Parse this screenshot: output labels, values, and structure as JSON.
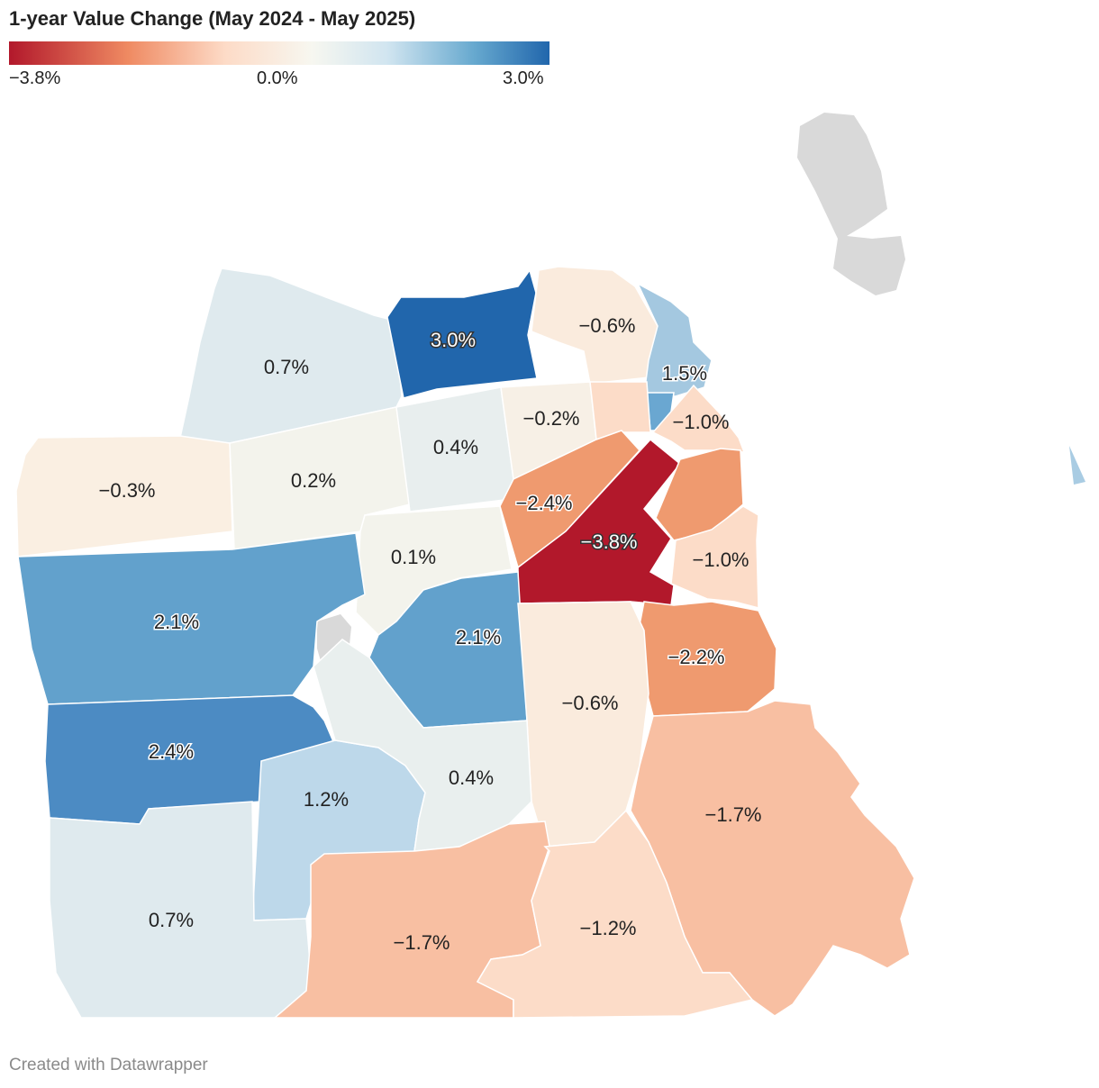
{
  "title": "1-year Value Change (May 2024 - May 2025)",
  "legend": {
    "min_label": "−3.8%",
    "mid_label": "0.0%",
    "max_label": "3.0%",
    "min": -3.8,
    "max": 3.0
  },
  "colors": {
    "deep_red": "#b2182b",
    "orange": "#ef9a6f",
    "salmon": "#f8bfa2",
    "light_peach": "#fcdcc8",
    "cream": "#faebdd",
    "off_white": "#f3f3ec",
    "pale_blue": "#dfeaee",
    "light_blue": "#bdd8ea",
    "mid_blue": "#62a1cc",
    "blue": "#4c8bc3",
    "dark_blue": "#2166ac",
    "no_data": "#d9d9d9"
  },
  "regions": [
    {
      "id": "presidio",
      "value": 0.7,
      "label": "0.7%"
    },
    {
      "id": "marina",
      "value": 3.0,
      "label": "3.0%"
    },
    {
      "id": "north-beach",
      "value": -0.6,
      "label": "−0.6%"
    },
    {
      "id": "financial-district",
      "value": 1.5,
      "label": "1.5%"
    },
    {
      "id": "richmond",
      "value": -0.3,
      "label": "−0.3%"
    },
    {
      "id": "inner-richmond",
      "value": 0.2,
      "label": "0.2%"
    },
    {
      "id": "pacific-heights",
      "value": 0.4,
      "label": "0.4%"
    },
    {
      "id": "nob-hill",
      "value": -0.2,
      "label": "−0.2%"
    },
    {
      "id": "south-beach",
      "value": -1.0,
      "label": "−1.0%"
    },
    {
      "id": "western-addition",
      "value": -2.4,
      "label": "−2.4%"
    },
    {
      "id": "soma",
      "value": -3.8,
      "label": "−3.8%"
    },
    {
      "id": "mission-bay",
      "value": -1.0,
      "label": "−1.0%"
    },
    {
      "id": "haight",
      "value": 0.1,
      "label": "0.1%"
    },
    {
      "id": "sunset",
      "value": 2.1,
      "label": "2.1%"
    },
    {
      "id": "castro",
      "value": 2.1,
      "label": "2.1%"
    },
    {
      "id": "potrero",
      "value": -2.2,
      "label": "−2.2%"
    },
    {
      "id": "mission",
      "value": -0.6,
      "label": "−0.6%"
    },
    {
      "id": "outer-sunset",
      "value": 2.4,
      "label": "2.4%"
    },
    {
      "id": "twin-peaks",
      "value": 1.2,
      "label": "1.2%"
    },
    {
      "id": "noe-valley",
      "value": 0.4,
      "label": "0.4%"
    },
    {
      "id": "bayview",
      "value": -1.7,
      "label": "−1.7%"
    },
    {
      "id": "parkside",
      "value": 0.7,
      "label": "0.7%"
    },
    {
      "id": "excelsior",
      "value": -1.7,
      "label": "−1.7%"
    },
    {
      "id": "visitacion",
      "value": -1.2,
      "label": "−1.2%"
    }
  ],
  "credit": "Created with Datawrapper"
}
